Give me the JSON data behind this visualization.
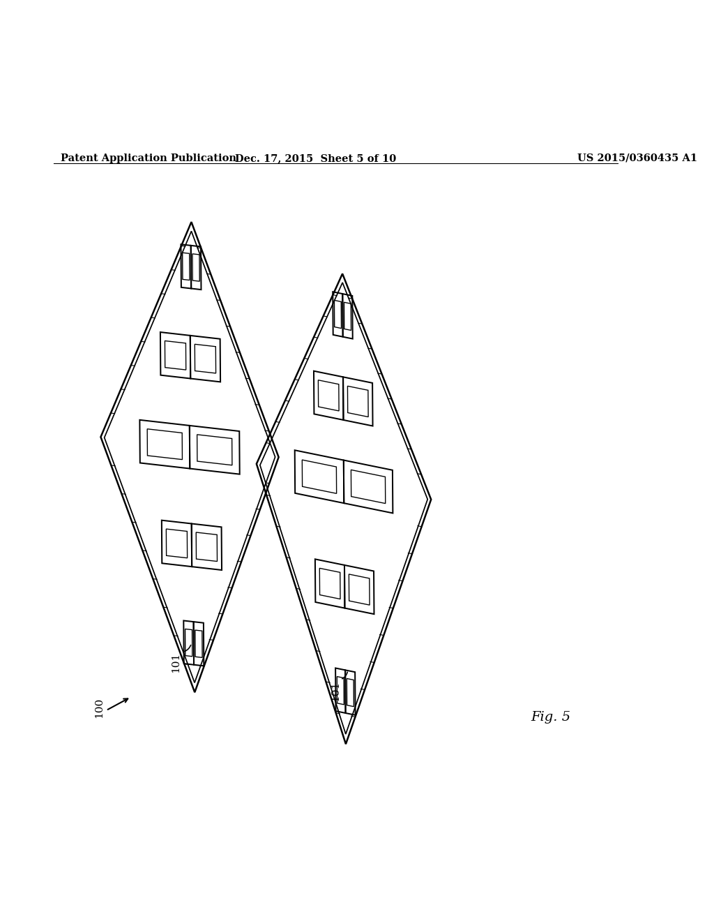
{
  "background_color": "#ffffff",
  "header_left": "Patent Application Publication",
  "header_mid": "Dec. 17, 2015  Sheet 5 of 10",
  "header_right": "US 2015/0360435 A1",
  "header_fontsize": 10.5,
  "fig_label": "Fig. 5",
  "fig_label_fontsize": 14,
  "label_fontsize": 11,
  "line_color": "#000000"
}
